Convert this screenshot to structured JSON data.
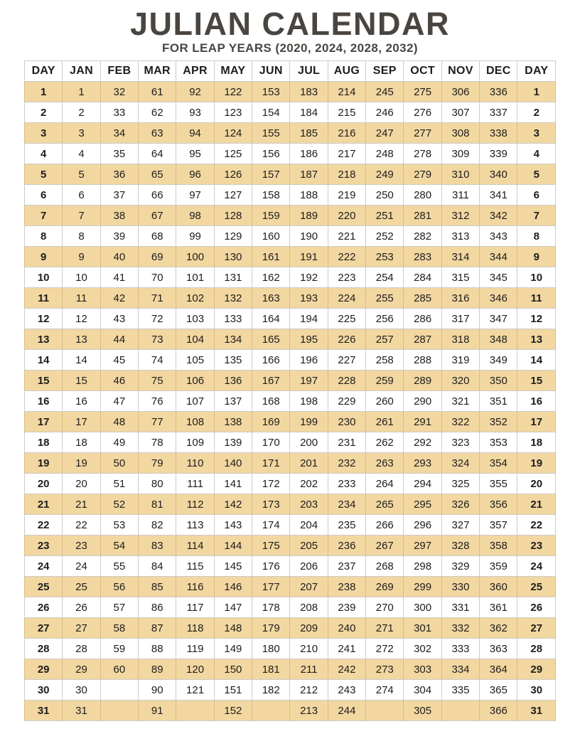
{
  "page": {
    "title": "JULIAN CALENDAR",
    "subtitle": "FOR LEAP YEARS (2020, 2024, 2028, 2032)"
  },
  "colors": {
    "row_highlight": "#f2d7a1",
    "grid_line": "#cccbc8",
    "heading_text": "#4a4540",
    "cell_text": "#1e1d1b"
  },
  "table": {
    "headers": [
      "DAY",
      "JAN",
      "FEB",
      "MAR",
      "APR",
      "MAY",
      "JUN",
      "JUL",
      "AUG",
      "SEP",
      "OCT",
      "NOV",
      "DEC",
      "DAY"
    ],
    "rows": [
      [
        "1",
        "1",
        "32",
        "61",
        "92",
        "122",
        "153",
        "183",
        "214",
        "245",
        "275",
        "306",
        "336",
        "1"
      ],
      [
        "2",
        "2",
        "33",
        "62",
        "93",
        "123",
        "154",
        "184",
        "215",
        "246",
        "276",
        "307",
        "337",
        "2"
      ],
      [
        "3",
        "3",
        "34",
        "63",
        "94",
        "124",
        "155",
        "185",
        "216",
        "247",
        "277",
        "308",
        "338",
        "3"
      ],
      [
        "4",
        "4",
        "35",
        "64",
        "95",
        "125",
        "156",
        "186",
        "217",
        "248",
        "278",
        "309",
        "339",
        "4"
      ],
      [
        "5",
        "5",
        "36",
        "65",
        "96",
        "126",
        "157",
        "187",
        "218",
        "249",
        "279",
        "310",
        "340",
        "5"
      ],
      [
        "6",
        "6",
        "37",
        "66",
        "97",
        "127",
        "158",
        "188",
        "219",
        "250",
        "280",
        "311",
        "341",
        "6"
      ],
      [
        "7",
        "7",
        "38",
        "67",
        "98",
        "128",
        "159",
        "189",
        "220",
        "251",
        "281",
        "312",
        "342",
        "7"
      ],
      [
        "8",
        "8",
        "39",
        "68",
        "99",
        "129",
        "160",
        "190",
        "221",
        "252",
        "282",
        "313",
        "343",
        "8"
      ],
      [
        "9",
        "9",
        "40",
        "69",
        "100",
        "130",
        "161",
        "191",
        "222",
        "253",
        "283",
        "314",
        "344",
        "9"
      ],
      [
        "10",
        "10",
        "41",
        "70",
        "101",
        "131",
        "162",
        "192",
        "223",
        "254",
        "284",
        "315",
        "345",
        "10"
      ],
      [
        "11",
        "11",
        "42",
        "71",
        "102",
        "132",
        "163",
        "193",
        "224",
        "255",
        "285",
        "316",
        "346",
        "11"
      ],
      [
        "12",
        "12",
        "43",
        "72",
        "103",
        "133",
        "164",
        "194",
        "225",
        "256",
        "286",
        "317",
        "347",
        "12"
      ],
      [
        "13",
        "13",
        "44",
        "73",
        "104",
        "134",
        "165",
        "195",
        "226",
        "257",
        "287",
        "318",
        "348",
        "13"
      ],
      [
        "14",
        "14",
        "45",
        "74",
        "105",
        "135",
        "166",
        "196",
        "227",
        "258",
        "288",
        "319",
        "349",
        "14"
      ],
      [
        "15",
        "15",
        "46",
        "75",
        "106",
        "136",
        "167",
        "197",
        "228",
        "259",
        "289",
        "320",
        "350",
        "15"
      ],
      [
        "16",
        "16",
        "47",
        "76",
        "107",
        "137",
        "168",
        "198",
        "229",
        "260",
        "290",
        "321",
        "351",
        "16"
      ],
      [
        "17",
        "17",
        "48",
        "77",
        "108",
        "138",
        "169",
        "199",
        "230",
        "261",
        "291",
        "322",
        "352",
        "17"
      ],
      [
        "18",
        "18",
        "49",
        "78",
        "109",
        "139",
        "170",
        "200",
        "231",
        "262",
        "292",
        "323",
        "353",
        "18"
      ],
      [
        "19",
        "19",
        "50",
        "79",
        "110",
        "140",
        "171",
        "201",
        "232",
        "263",
        "293",
        "324",
        "354",
        "19"
      ],
      [
        "20",
        "20",
        "51",
        "80",
        "111",
        "141",
        "172",
        "202",
        "233",
        "264",
        "294",
        "325",
        "355",
        "20"
      ],
      [
        "21",
        "21",
        "52",
        "81",
        "112",
        "142",
        "173",
        "203",
        "234",
        "265",
        "295",
        "326",
        "356",
        "21"
      ],
      [
        "22",
        "22",
        "53",
        "82",
        "113",
        "143",
        "174",
        "204",
        "235",
        "266",
        "296",
        "327",
        "357",
        "22"
      ],
      [
        "23",
        "23",
        "54",
        "83",
        "114",
        "144",
        "175",
        "205",
        "236",
        "267",
        "297",
        "328",
        "358",
        "23"
      ],
      [
        "24",
        "24",
        "55",
        "84",
        "115",
        "145",
        "176",
        "206",
        "237",
        "268",
        "298",
        "329",
        "359",
        "24"
      ],
      [
        "25",
        "25",
        "56",
        "85",
        "116",
        "146",
        "177",
        "207",
        "238",
        "269",
        "299",
        "330",
        "360",
        "25"
      ],
      [
        "26",
        "26",
        "57",
        "86",
        "117",
        "147",
        "178",
        "208",
        "239",
        "270",
        "300",
        "331",
        "361",
        "26"
      ],
      [
        "27",
        "27",
        "58",
        "87",
        "118",
        "148",
        "179",
        "209",
        "240",
        "271",
        "301",
        "332",
        "362",
        "27"
      ],
      [
        "28",
        "28",
        "59",
        "88",
        "119",
        "149",
        "180",
        "210",
        "241",
        "272",
        "302",
        "333",
        "363",
        "28"
      ],
      [
        "29",
        "29",
        "60",
        "89",
        "120",
        "150",
        "181",
        "211",
        "242",
        "273",
        "303",
        "334",
        "364",
        "29"
      ],
      [
        "30",
        "30",
        "",
        "90",
        "121",
        "151",
        "182",
        "212",
        "243",
        "274",
        "304",
        "335",
        "365",
        "30"
      ],
      [
        "31",
        "31",
        "",
        "91",
        "",
        "152",
        "",
        "213",
        "244",
        "",
        "305",
        "",
        "366",
        "31"
      ]
    ]
  }
}
